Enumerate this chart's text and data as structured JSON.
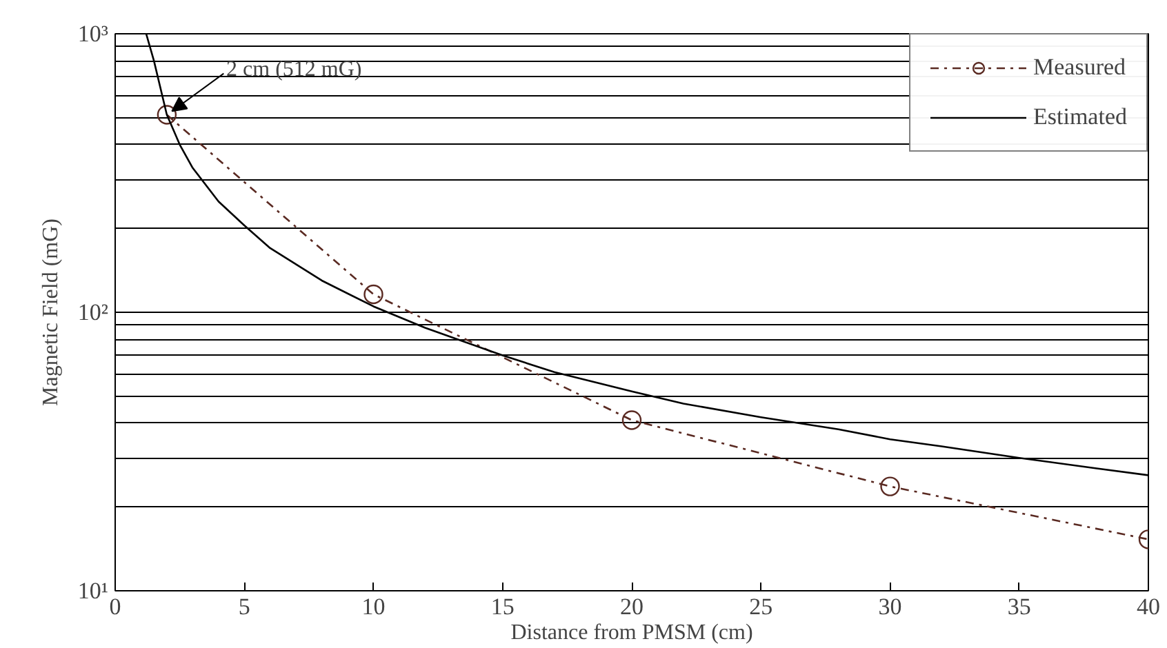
{
  "chart_data": {
    "type": "line",
    "xlabel": "Distance from PMSM (cm)",
    "ylabel": "Magnetic Field (mG)",
    "xlim": [
      0,
      40
    ],
    "ylim": [
      10,
      1000
    ],
    "log": "y",
    "grid": "y",
    "legend": "top right",
    "xticks": [
      0,
      5,
      10,
      15,
      20,
      25,
      30,
      35,
      40
    ],
    "yticks": [
      {
        "value": 10,
        "label": "10¹"
      },
      {
        "value": 20,
        "label": null
      },
      {
        "value": 30,
        "label": null
      },
      {
        "value": 40,
        "label": null
      },
      {
        "value": 50,
        "label": null
      },
      {
        "value": 60,
        "label": null
      },
      {
        "value": 70,
        "label": null
      },
      {
        "value": 80,
        "label": null
      },
      {
        "value": 90,
        "label": null
      },
      {
        "value": 100,
        "label": "10²"
      },
      {
        "value": 200,
        "label": null
      },
      {
        "value": 300,
        "label": null
      },
      {
        "value": 400,
        "label": null
      },
      {
        "value": 500,
        "label": null
      },
      {
        "value": 600,
        "label": null
      },
      {
        "value": 700,
        "label": null
      },
      {
        "value": 800,
        "label": null
      },
      {
        "value": 900,
        "label": null
      },
      {
        "value": 1000,
        "label": "10³"
      }
    ],
    "series": [
      {
        "name": "Measured",
        "color": "#5a2a22",
        "marker": "circle",
        "line_style": "dashdot",
        "x": [
          2,
          10,
          20,
          30,
          40
        ],
        "values": [
          512,
          116,
          41,
          23.7,
          15.3
        ]
      },
      {
        "name": "Estimated",
        "color": "#000000",
        "marker": "none",
        "line_style": "solid",
        "x": [
          1.2,
          1.5,
          2,
          2.5,
          3,
          4,
          5,
          6,
          8,
          10,
          12,
          15,
          17,
          20,
          22,
          25,
          28,
          30,
          32,
          35,
          38,
          40
        ],
        "values": [
          1000,
          800,
          512,
          400,
          330,
          250,
          205,
          170,
          130,
          105,
          88,
          70,
          61,
          52,
          47,
          42,
          38,
          35,
          33,
          30,
          27.5,
          26
        ]
      }
    ],
    "annotations": [
      {
        "text": "2 cm (512 mG)",
        "x": 2,
        "y": 512
      }
    ]
  }
}
